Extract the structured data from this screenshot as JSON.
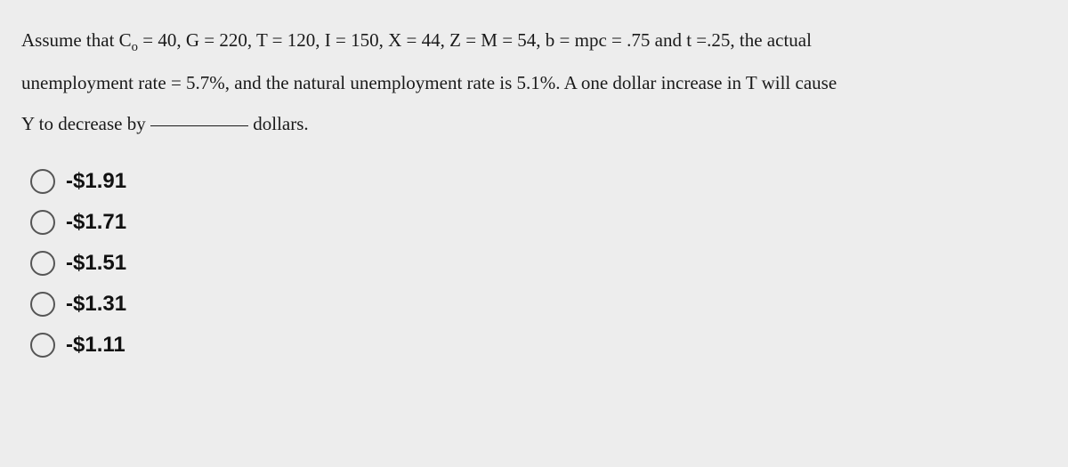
{
  "question": {
    "line1_prefix": "Assume that C",
    "line1_sub": "o",
    "line1_rest": " = 40, G = 220, T = 120, I = 150, X = 44, Z = M = 54, b = mpc = .75 and t =.25, the actual",
    "line2": "unemployment rate = 5.7%, and the natural unemployment rate is 5.1%.  A one dollar increase in T will cause",
    "line3_prefix": "Y to decrease by ",
    "line3_suffix": " dollars."
  },
  "options": [
    {
      "label": "-$1.91"
    },
    {
      "label": "-$1.71"
    },
    {
      "label": "-$1.51"
    },
    {
      "label": "-$1.31"
    },
    {
      "label": "-$1.11"
    }
  ],
  "colors": {
    "background": "#ededed",
    "text": "#1a1a1a",
    "radio_border": "#555"
  }
}
